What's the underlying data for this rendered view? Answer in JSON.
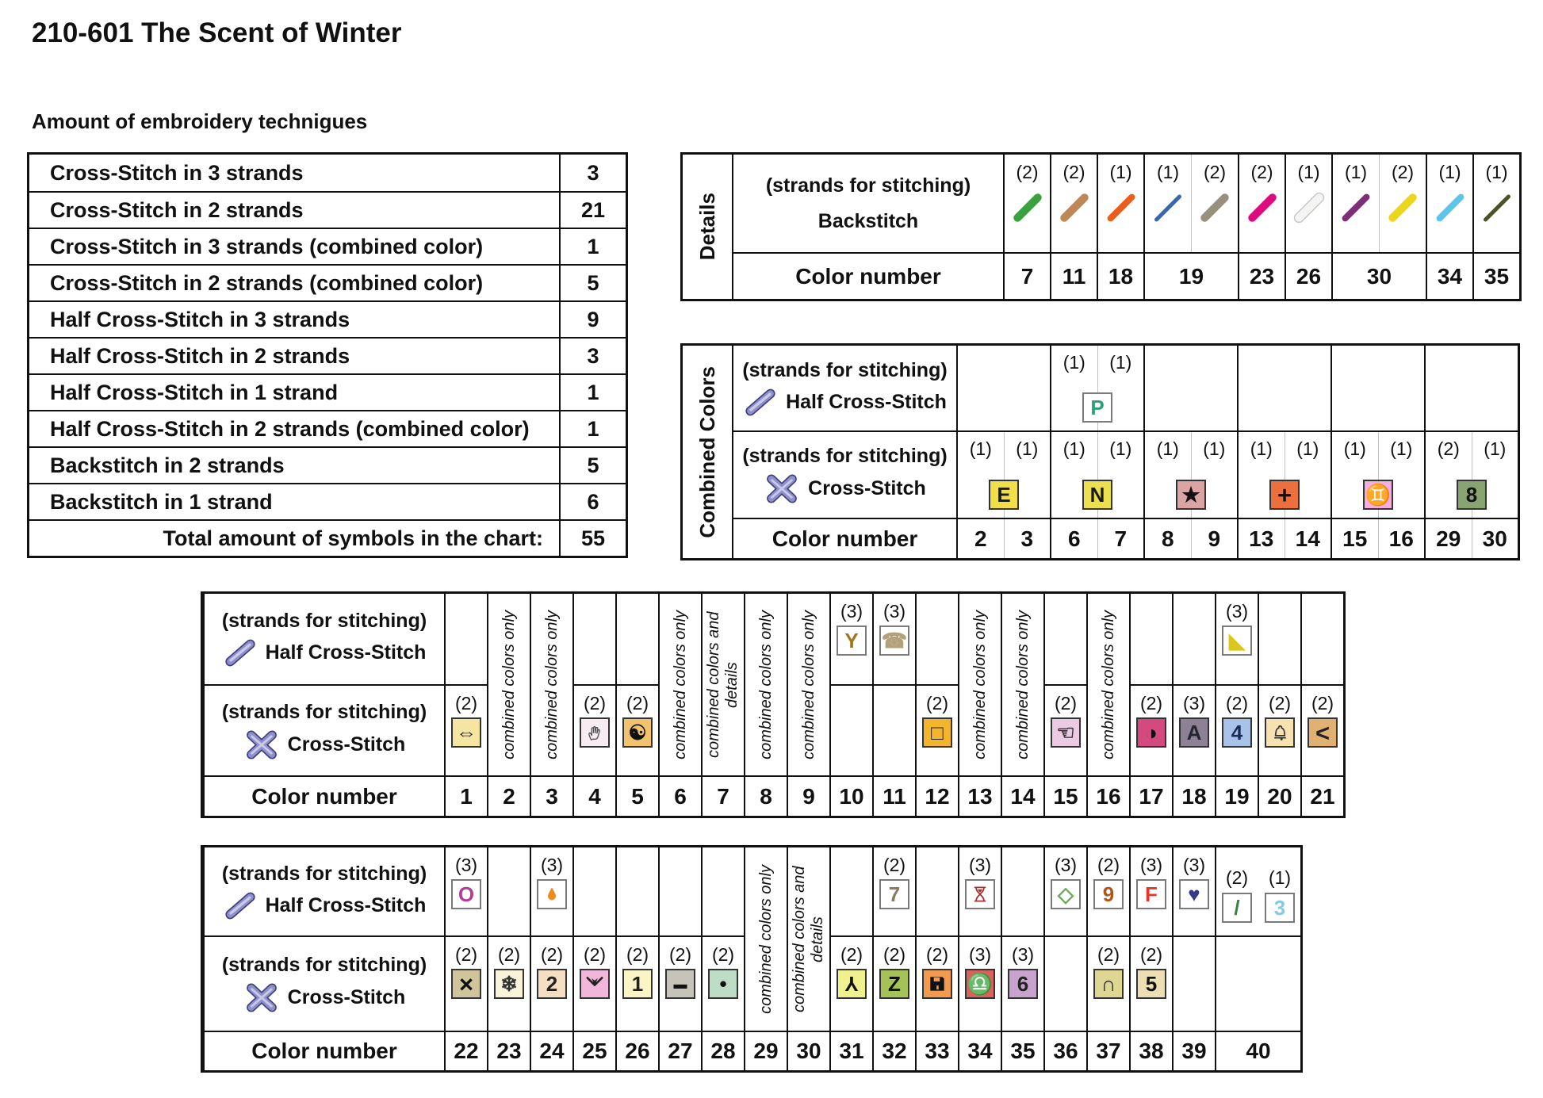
{
  "page": {
    "title": "210-601 The Scent of Winter",
    "subtitle": "Amount of embroidery technigues"
  },
  "techniques": {
    "rows": [
      {
        "label": "Cross-Stitch in 3 strands",
        "value": "3"
      },
      {
        "label": "Cross-Stitch in 2 strands",
        "value": "21"
      },
      {
        "label": "Cross-Stitch in 3 strands (combined color)",
        "value": "1"
      },
      {
        "label": "Cross-Stitch in 2 strands (combined color)",
        "value": "5"
      },
      {
        "label": "Half Cross-Stitch in 3 strands",
        "value": "9"
      },
      {
        "label": "Half Cross-Stitch in 2 strands",
        "value": "3"
      },
      {
        "label": "Half Cross-Stitch in 1 strand",
        "value": "1"
      },
      {
        "label": "Half Cross-Stitch in 2 strands (combined color)",
        "value": "1"
      },
      {
        "label": "Backstitch in 2 strands",
        "value": "5"
      },
      {
        "label": "Backstitch in 1 strand",
        "value": "6"
      },
      {
        "label": "Total amount of symbols in the chart:",
        "value": "55",
        "total": true
      }
    ]
  },
  "details": {
    "side_label": "Details",
    "strands_label": "(strands for stitching)",
    "type_label": "Backstitch",
    "color_number_label": "Color number",
    "cells": [
      {
        "number": "7",
        "strokes": [
          {
            "strands": "(2)",
            "color": "#3aa23c",
            "weight": "thick"
          }
        ]
      },
      {
        "number": "11",
        "strokes": [
          {
            "strands": "(2)",
            "color": "#bf8656",
            "weight": "thick"
          }
        ]
      },
      {
        "number": "18",
        "strokes": [
          {
            "strands": "(1)",
            "color": "#ea5f1d",
            "weight": "med"
          }
        ]
      },
      {
        "number": "19",
        "span": 2,
        "strokes": [
          {
            "strands": "(1)",
            "color": "#3a66b0",
            "weight": "thin"
          },
          {
            "strands": "(2)",
            "color": "#97907f",
            "weight": "thick"
          }
        ]
      },
      {
        "number": "23",
        "strokes": [
          {
            "strands": "(2)",
            "color": "#dc0c7e",
            "weight": "thick"
          }
        ]
      },
      {
        "number": "26",
        "strokes": [
          {
            "strands": "(1)",
            "color": "#f4f4f2",
            "weight": "thick",
            "outline": true
          }
        ]
      },
      {
        "number": "30",
        "span": 2,
        "strokes": [
          {
            "strands": "(1)",
            "color": "#7e2d79",
            "weight": "med"
          },
          {
            "strands": "(2)",
            "color": "#ecd51e",
            "weight": "thick"
          }
        ]
      },
      {
        "number": "34",
        "strokes": [
          {
            "strands": "(1)",
            "color": "#5bc6ea",
            "weight": "med"
          }
        ]
      },
      {
        "number": "35",
        "strokes": [
          {
            "strands": "(1)",
            "color": "#4c5226",
            "weight": "thin"
          }
        ]
      }
    ]
  },
  "combined": {
    "side_label": "Combined Colors",
    "strands_label": "(strands for stitching)",
    "half_label": "Half Cross-Stitch",
    "cross_label": "Cross-Stitch",
    "color_number_label": "Color number",
    "pairs": [
      {
        "numbers": [
          "2",
          "3"
        ],
        "cross": {
          "strands": [
            "(1)",
            "(1)"
          ],
          "sym": {
            "glyph": "E",
            "bg": "#f1df4a",
            "fg": "#1a1a1a"
          }
        }
      },
      {
        "numbers": [
          "6",
          "7"
        ],
        "half": {
          "strands": [
            "(1)",
            "(1)"
          ],
          "sym": {
            "glyph": "P",
            "bg": "#ffffff",
            "fg": "#2f9e7b"
          }
        },
        "cross": {
          "strands": [
            "(1)",
            "(1)"
          ],
          "sym": {
            "glyph": "N",
            "bg": "#ece04e",
            "fg": "#1a1a1a"
          }
        }
      },
      {
        "numbers": [
          "8",
          "9"
        ],
        "cross": {
          "strands": [
            "(1)",
            "(1)"
          ],
          "sym": {
            "glyph": "★",
            "bg": "#dba4a4",
            "fg": "#111111"
          }
        }
      },
      {
        "numbers": [
          "13",
          "14"
        ],
        "cross": {
          "strands": [
            "(1)",
            "(1)"
          ],
          "sym": {
            "glyph": "+",
            "bg": "#ec6f3e",
            "fg": "#111111",
            "variant": "heavy"
          }
        }
      },
      {
        "numbers": [
          "15",
          "16"
        ],
        "cross": {
          "strands": [
            "(1)",
            "(1)"
          ],
          "sym": {
            "glyph": "♊",
            "bg": "#f6aede",
            "fg": "#333333"
          }
        }
      },
      {
        "numbers": [
          "29",
          "30"
        ],
        "cross": {
          "strands": [
            "(2)",
            "(1)"
          ],
          "sym": {
            "glyph": "8",
            "bg": "#87a471",
            "fg": "#111111"
          }
        }
      }
    ]
  },
  "symtable1": {
    "strands_label": "(strands for stitching)",
    "half_label": "Half Cross-Stitch",
    "cross_label": "Cross-Stitch",
    "color_number_label": "Color number",
    "columns": [
      {
        "kind": "sym",
        "number": "1",
        "cross": {
          "strands": "(2)",
          "sym": {
            "glyph": "⇔",
            "bg": "#f4e5a2",
            "fg": "#222222"
          }
        }
      },
      {
        "kind": "note",
        "number": "2",
        "note": "combined colors only"
      },
      {
        "kind": "note",
        "number": "3",
        "note": "combined colors only"
      },
      {
        "kind": "sym",
        "number": "4",
        "cross": {
          "strands": "(2)",
          "sym": {
            "icon": "hand",
            "bg": "#f7ecf2",
            "fg": "#555555"
          }
        }
      },
      {
        "kind": "sym",
        "number": "5",
        "cross": {
          "strands": "(2)",
          "sym": {
            "glyph": "☯",
            "bg": "#f1c36e",
            "fg": "#111111"
          }
        }
      },
      {
        "kind": "note",
        "number": "6",
        "note": "combined colors only"
      },
      {
        "kind": "note",
        "number": "7",
        "note": "combined colors and details"
      },
      {
        "kind": "note",
        "number": "8",
        "note": "combined colors only"
      },
      {
        "kind": "note",
        "number": "9",
        "note": "combined colors only"
      },
      {
        "kind": "sym",
        "number": "10",
        "half": {
          "strands": "(3)",
          "sym": {
            "glyph": "Y",
            "bg": "#ffffff",
            "fg": "#a3761d"
          }
        }
      },
      {
        "kind": "sym",
        "number": "11",
        "half": {
          "strands": "(3)",
          "sym": {
            "glyph": "☎",
            "bg": "#ffffff",
            "fg": "#b2a17b"
          }
        }
      },
      {
        "kind": "sym",
        "number": "12",
        "cross": {
          "strands": "(2)",
          "sym": {
            "glyph": "□",
            "bg": "#f3b52d",
            "fg": "#222222"
          }
        }
      },
      {
        "kind": "note",
        "number": "13",
        "note": "combined colors only"
      },
      {
        "kind": "note",
        "number": "14",
        "note": "combined colors only"
      },
      {
        "kind": "sym",
        "number": "15",
        "cross": {
          "strands": "(2)",
          "sym": {
            "glyph": "☜",
            "bg": "#eccae4",
            "fg": "#333333"
          }
        }
      },
      {
        "kind": "note",
        "number": "16",
        "note": "combined colors only"
      },
      {
        "kind": "sym",
        "number": "17",
        "cross": {
          "strands": "(2)",
          "sym": {
            "glyph": "◑",
            "bg": "#d44a7e",
            "fg": "#111111"
          }
        }
      },
      {
        "kind": "sym",
        "number": "18",
        "cross": {
          "strands": "(3)",
          "sym": {
            "glyph": "A",
            "bg": "#8d8195",
            "fg": "#26262e"
          }
        }
      },
      {
        "kind": "sym",
        "number": "19",
        "half": {
          "strands": "(3)",
          "sym": {
            "glyph": "◣",
            "bg": "#ffffff",
            "fg": "#ddc71c"
          }
        },
        "cross": {
          "strands": "(2)",
          "sym": {
            "glyph": "4",
            "bg": "#a9c3e8",
            "fg": "#1c2a5a"
          }
        }
      },
      {
        "kind": "sym",
        "number": "20",
        "cross": {
          "strands": "(2)",
          "sym": {
            "icon": "bell",
            "bg": "#f8e1b1",
            "fg": "#333333"
          }
        }
      },
      {
        "kind": "sym",
        "number": "21",
        "cross": {
          "strands": "(2)",
          "sym": {
            "glyph": "<",
            "bg": "#e1b173",
            "fg": "#222222",
            "variant": "heavy"
          }
        }
      }
    ]
  },
  "symtable2": {
    "strands_label": "(strands for stitching)",
    "half_label": "Half Cross-Stitch",
    "cross_label": "Cross-Stitch",
    "color_number_label": "Color number",
    "columns": [
      {
        "kind": "sym",
        "number": "22",
        "half": {
          "strands": "(3)",
          "sym": {
            "glyph": "O",
            "bg": "#ffffff",
            "fg": "#b63a9c"
          }
        },
        "cross": {
          "strands": "(2)",
          "sym": {
            "glyph": "×",
            "bg": "#cfc49b",
            "fg": "#111111",
            "variant": "heavy"
          }
        }
      },
      {
        "kind": "sym",
        "number": "23",
        "cross": {
          "strands": "(2)",
          "sym": {
            "glyph": "❄",
            "bg": "#f9f3da",
            "fg": "#333333"
          }
        }
      },
      {
        "kind": "sym",
        "number": "24",
        "half": {
          "strands": "(3)",
          "sym": {
            "icon": "droplet",
            "bg": "#ffffff",
            "fg": "#ef8a1d"
          }
        },
        "cross": {
          "strands": "(2)",
          "sym": {
            "glyph": "2",
            "bg": "#f5dec2",
            "fg": "#222222"
          }
        }
      },
      {
        "kind": "sym",
        "number": "25",
        "cross": {
          "strands": "(2)",
          "sym": {
            "icon": "dart",
            "bg": "#f1b6d9",
            "fg": "#222222"
          }
        }
      },
      {
        "kind": "sym",
        "number": "26",
        "cross": {
          "strands": "(2)",
          "sym": {
            "glyph": "1",
            "bg": "#f9f5c5",
            "fg": "#222222"
          }
        }
      },
      {
        "kind": "sym",
        "number": "27",
        "cross": {
          "strands": "(2)",
          "sym": {
            "glyph": "▬",
            "bg": "#c5c3ba",
            "fg": "#111111",
            "variant": "small"
          }
        }
      },
      {
        "kind": "sym",
        "number": "28",
        "cross": {
          "strands": "(2)",
          "sym": {
            "glyph": "•",
            "bg": "#bdddc5",
            "fg": "#111111"
          }
        }
      },
      {
        "kind": "note",
        "number": "29",
        "note": "combined colors only"
      },
      {
        "kind": "note",
        "number": "30",
        "note": "combined colors and details"
      },
      {
        "kind": "sym",
        "number": "31",
        "cross": {
          "strands": "(2)",
          "sym": {
            "glyph": "Y",
            "bg": "#eef18d",
            "fg": "#111111",
            "variant": "rot180"
          }
        }
      },
      {
        "kind": "sym",
        "number": "32",
        "half": {
          "strands": "(2)",
          "sym": {
            "glyph": "7",
            "bg": "#ffffff",
            "fg": "#8b7a60"
          }
        },
        "cross": {
          "strands": "(2)",
          "sym": {
            "glyph": "Z",
            "bg": "#a4c255",
            "fg": "#111111"
          }
        }
      },
      {
        "kind": "sym",
        "number": "33",
        "cross": {
          "strands": "(2)",
          "sym": {
            "icon": "floppy",
            "bg": "#f19a50",
            "fg": "#111111"
          }
        }
      },
      {
        "kind": "sym",
        "number": "34",
        "half": {
          "strands": "(3)",
          "sym": {
            "icon": "hourglass",
            "bg": "#ffffff",
            "fg": "#a23030"
          }
        },
        "cross": {
          "strands": "(3)",
          "sym": {
            "glyph": "♎",
            "bg": "#d8625c",
            "fg": "#3c1410"
          }
        }
      },
      {
        "kind": "sym",
        "number": "35",
        "cross": {
          "strands": "(3)",
          "sym": {
            "glyph": "6",
            "bg": "#c8a3cd",
            "fg": "#222222"
          }
        }
      },
      {
        "kind": "sym",
        "number": "36",
        "half": {
          "strands": "(3)",
          "sym": {
            "glyph": "◇",
            "bg": "#ffffff",
            "fg": "#6aa95e"
          }
        }
      },
      {
        "kind": "sym",
        "number": "37",
        "half": {
          "strands": "(2)",
          "sym": {
            "glyph": "9",
            "bg": "#ffffff",
            "fg": "#b1561a"
          }
        },
        "cross": {
          "strands": "(2)",
          "sym": {
            "glyph": "∩",
            "bg": "#ded693",
            "fg": "#222222"
          }
        }
      },
      {
        "kind": "sym",
        "number": "38",
        "half": {
          "strands": "(3)",
          "sym": {
            "glyph": "F",
            "bg": "#ffffff",
            "fg": "#e8352a"
          }
        },
        "cross": {
          "strands": "(2)",
          "sym": {
            "glyph": "5",
            "bg": "#ebdfb3",
            "fg": "#111111"
          }
        }
      },
      {
        "kind": "sym",
        "number": "39",
        "half": {
          "strands": "(3)",
          "sym": {
            "glyph": "♥",
            "bg": "#ffffff",
            "fg": "#34398b"
          }
        }
      },
      {
        "kind": "sym2",
        "number": "40",
        "halfs": [
          {
            "strands": "(2)",
            "sym": {
              "glyph": "/",
              "bg": "#ffffff",
              "fg": "#35853b"
            }
          },
          {
            "strands": "(1)",
            "sym": {
              "glyph": "3",
              "bg": "#ffffff",
              "fg": "#84cae8"
            }
          }
        ]
      }
    ]
  }
}
